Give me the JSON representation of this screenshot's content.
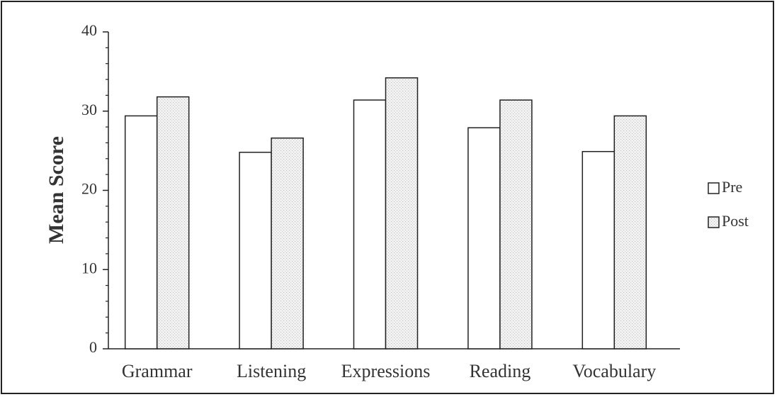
{
  "chart_data": {
    "type": "bar",
    "title": "",
    "xlabel": "",
    "ylabel": "Mean Score",
    "ylim": [
      0,
      40
    ],
    "yticks": [
      0,
      10,
      20,
      30,
      40
    ],
    "ytick_labels": [
      "0",
      "10",
      "20",
      "30",
      "40"
    ],
    "grid": false,
    "legend_position": "right",
    "categories": [
      "Grammar",
      "Listening",
      "Expressions",
      "Reading",
      "Vocabulary"
    ],
    "series": [
      {
        "name": "Pre",
        "values": [
          29.4,
          24.8,
          31.4,
          27.9,
          24.9
        ],
        "color": "#ffffff"
      },
      {
        "name": "Post",
        "values": [
          31.8,
          26.6,
          34.2,
          31.4,
          29.4
        ],
        "color": "#e8e8e8"
      }
    ]
  }
}
